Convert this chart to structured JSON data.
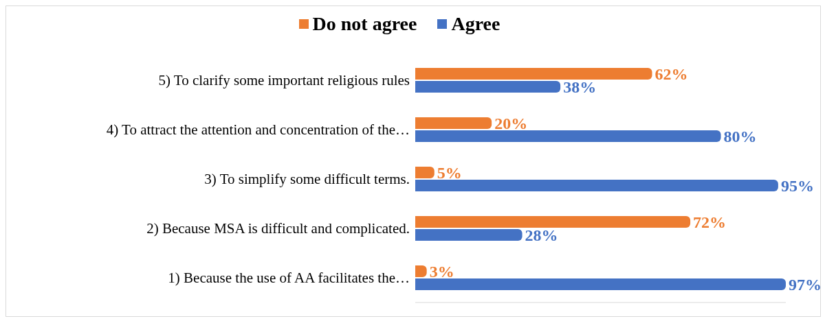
{
  "chart_data": {
    "type": "bar",
    "orientation": "horizontal",
    "categories": [
      "5) To clarify some important religious rules",
      "4) To attract the attention and concentration of the…",
      "3) To simplify some difficult terms.",
      "2) Because MSA is difficult and complicated.",
      "1) Because the use of AA facilitates the…"
    ],
    "series": [
      {
        "name": "Do not agree",
        "color": "#ed7d31",
        "values": [
          62,
          20,
          5,
          72,
          3
        ],
        "value_labels": [
          "62%",
          "20%",
          "5%",
          "72%",
          "3%"
        ]
      },
      {
        "name": "Agree",
        "color": "#4472c4",
        "values": [
          38,
          80,
          95,
          28,
          97
        ],
        "value_labels": [
          "38%",
          "80%",
          "95%",
          "28%",
          "97%"
        ]
      }
    ],
    "legend": "top",
    "tick_labels": "y"
  }
}
